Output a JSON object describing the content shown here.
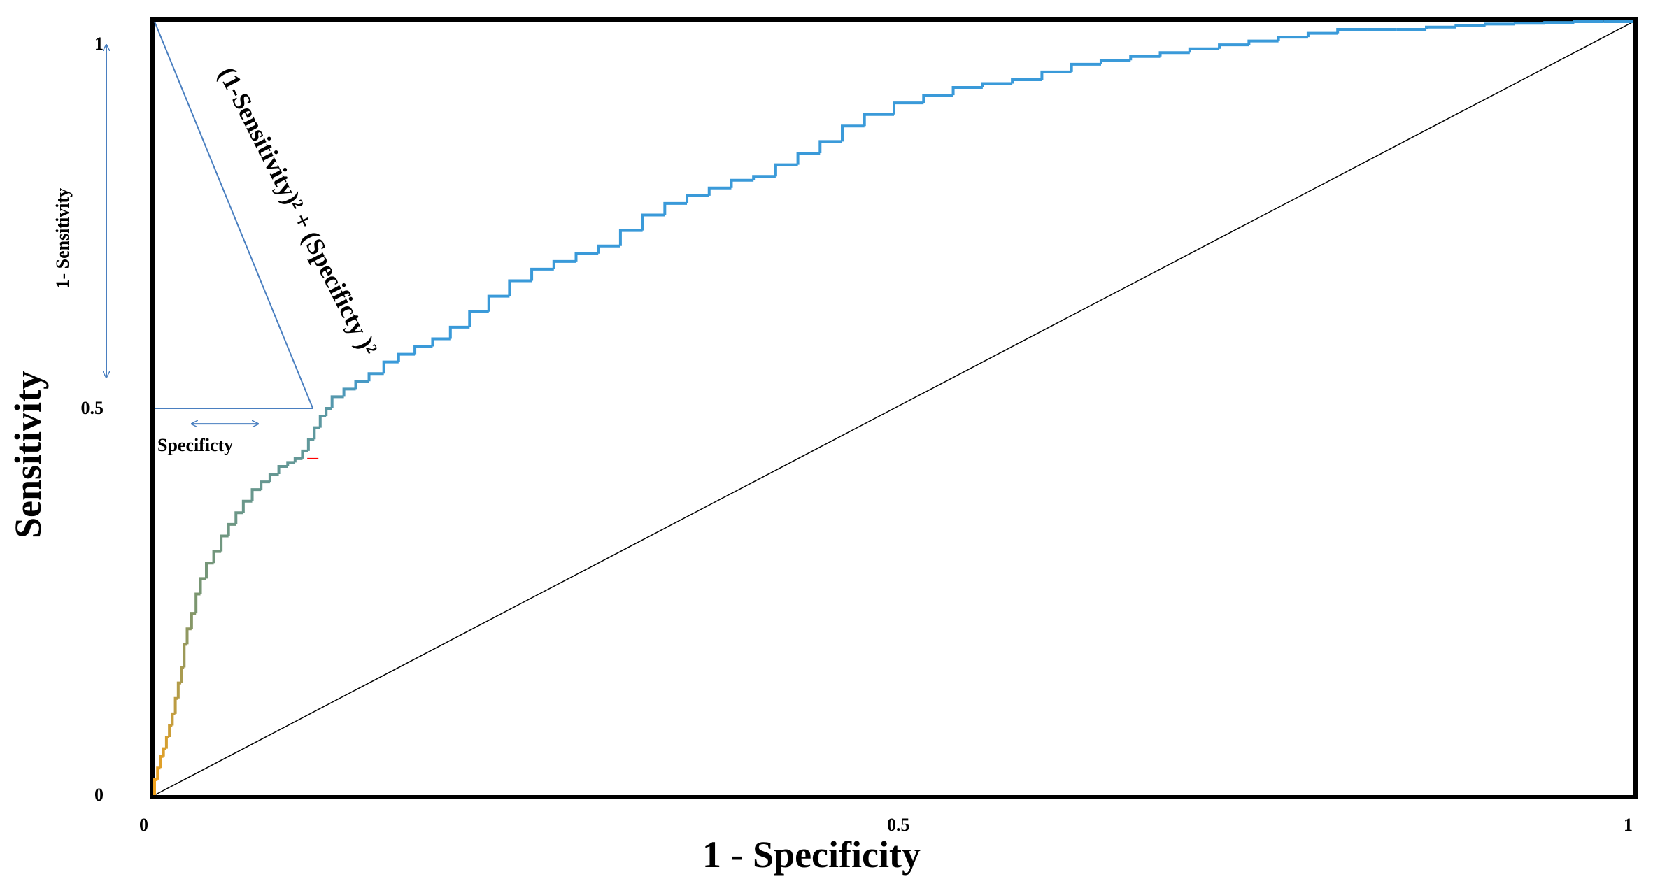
{
  "chart_data": {
    "type": "line",
    "title": "",
    "xlabel": "1 - Specificity",
    "ylabel": "Sensitivity",
    "xlim": [
      0,
      1
    ],
    "ylim": [
      0,
      1
    ],
    "x_ticks": [
      "0",
      "0.5",
      "1"
    ],
    "y_ticks": [
      "0",
      "0.5",
      "1"
    ],
    "grid": false,
    "legend": "none",
    "colors": {
      "roc_low": "#f5a21b",
      "roc_mid": "#7a9670",
      "roc_high": "#3a9ad9",
      "diagonal": "#000000",
      "annotation": "#4a7fc0",
      "marker": "#ff0000"
    },
    "series": [
      {
        "role": "roc-curve",
        "x": [
          0.0,
          0.002,
          0.004,
          0.006,
          0.008,
          0.01,
          0.012,
          0.014,
          0.016,
          0.018,
          0.02,
          0.022,
          0.025,
          0.028,
          0.031,
          0.035,
          0.04,
          0.045,
          0.05,
          0.055,
          0.06,
          0.066,
          0.072,
          0.078,
          0.084,
          0.09,
          0.095,
          0.1,
          0.104,
          0.108,
          0.112,
          0.116,
          0.12,
          0.128,
          0.136,
          0.145,
          0.155,
          0.165,
          0.176,
          0.188,
          0.2,
          0.213,
          0.226,
          0.24,
          0.255,
          0.27,
          0.285,
          0.3,
          0.315,
          0.33,
          0.345,
          0.36,
          0.375,
          0.39,
          0.405,
          0.42,
          0.435,
          0.45,
          0.465,
          0.48,
          0.5,
          0.52,
          0.54,
          0.56,
          0.58,
          0.6,
          0.62,
          0.64,
          0.66,
          0.68,
          0.7,
          0.72,
          0.74,
          0.76,
          0.78,
          0.8,
          0.82,
          0.84,
          0.86,
          0.88,
          0.9,
          0.92,
          0.94,
          0.96,
          0.98,
          1.0
        ],
        "y": [
          0.0,
          0.02,
          0.035,
          0.05,
          0.06,
          0.075,
          0.09,
          0.105,
          0.125,
          0.145,
          0.165,
          0.195,
          0.215,
          0.235,
          0.26,
          0.28,
          0.3,
          0.315,
          0.335,
          0.35,
          0.365,
          0.38,
          0.395,
          0.405,
          0.415,
          0.425,
          0.43,
          0.435,
          0.445,
          0.46,
          0.475,
          0.49,
          0.5,
          0.515,
          0.525,
          0.535,
          0.545,
          0.56,
          0.57,
          0.58,
          0.59,
          0.605,
          0.625,
          0.645,
          0.665,
          0.68,
          0.69,
          0.7,
          0.71,
          0.73,
          0.75,
          0.765,
          0.775,
          0.785,
          0.795,
          0.8,
          0.815,
          0.83,
          0.845,
          0.865,
          0.88,
          0.895,
          0.905,
          0.915,
          0.92,
          0.925,
          0.935,
          0.945,
          0.95,
          0.955,
          0.96,
          0.965,
          0.97,
          0.975,
          0.98,
          0.985,
          0.99,
          0.99,
          0.99,
          0.993,
          0.995,
          0.997,
          0.998,
          0.999,
          1.0,
          1.0
        ]
      },
      {
        "role": "chance-line",
        "x": [
          0,
          1
        ],
        "y": [
          0,
          1
        ]
      }
    ],
    "optimal_point": {
      "x": 0.107,
      "y": 0.5
    },
    "annotations": {
      "distance_formula": "(1-Sensitivity)² + (Specificty )²",
      "vertical_span_label": "1- Sensitivity",
      "horizontal_span_label": "Specificty"
    }
  }
}
